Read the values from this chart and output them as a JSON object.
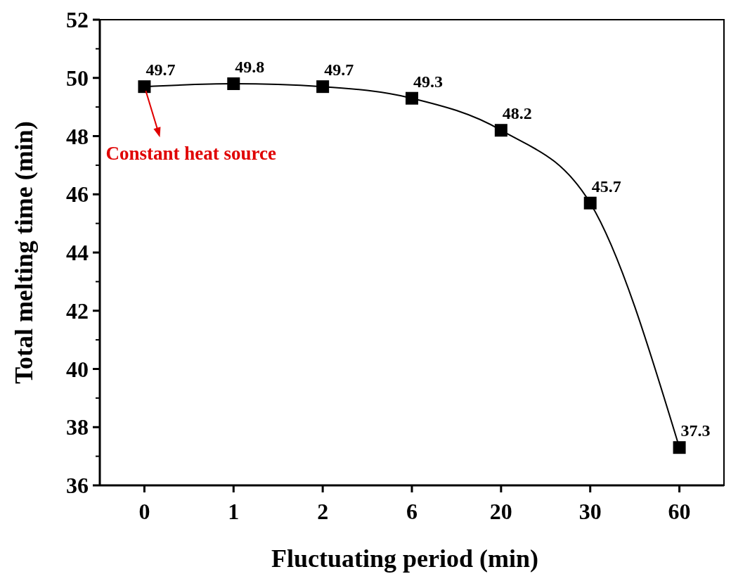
{
  "chart_data": {
    "type": "line",
    "xlabel": "Fluctuating period (min)",
    "ylabel": "Total melting time (min)",
    "categories": [
      "0",
      "1",
      "2",
      "6",
      "20",
      "30",
      "60"
    ],
    "series": [
      {
        "color": "#000000",
        "values": [
          49.7,
          49.8,
          49.7,
          49.3,
          48.2,
          45.7,
          37.3
        ]
      }
    ],
    "ylim": [
      36,
      52
    ],
    "yticks": [
      36,
      38,
      40,
      42,
      44,
      46,
      48,
      50,
      52
    ],
    "marker": "square",
    "line_style": "solid",
    "data_labels": true,
    "annotations": [
      {
        "text": "Constant heat source",
        "x": "0",
        "y": 49.7
      }
    ]
  }
}
